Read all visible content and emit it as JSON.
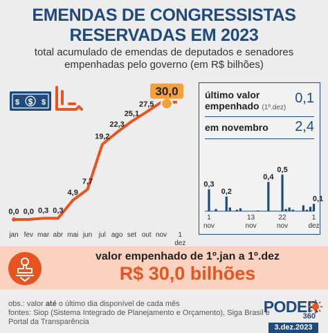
{
  "header": {
    "title_line1": "EMENDAS DE CONGRESSISTAS",
    "title_line2": "RESERVADAS EM 2023",
    "subtitle_line1": "total acumulado de emendas de deputados e senadores",
    "subtitle_line2": "empenhadas pelo governo (em R$ bilhões)"
  },
  "chart_data": [
    {
      "type": "line",
      "x": [
        "jan",
        "fev",
        "mar",
        "abr",
        "mai",
        "jun",
        "jul",
        "ago",
        "set",
        "out",
        "nov",
        "1 dez"
      ],
      "values": [
        0.0,
        0.0,
        0.3,
        0.3,
        4.9,
        7.7,
        19.2,
        22.3,
        25.1,
        27.5,
        30.0,
        30.0
      ],
      "value_labels": [
        "0,0",
        "0,0",
        "0,3",
        "0,3",
        "4,9",
        "7,7",
        "19,2",
        "22,3",
        "25,1",
        "27,5",
        "30,0",
        ""
      ],
      "highlight_index": 10,
      "color": "#e8541f",
      "ylim": [
        0,
        31
      ],
      "grid": false,
      "title": "",
      "xlabel": "",
      "ylabel": ""
    },
    {
      "type": "bar",
      "values": [
        0.3,
        0.0,
        0.03,
        0.0,
        0.0,
        0.2,
        0.05,
        0.0,
        0.02,
        0.04,
        0.0,
        0.0,
        0.0,
        0.0,
        0.01,
        0.0,
        0.0,
        0.4,
        0.0,
        0.0,
        0.0,
        0.5,
        0.03,
        0.05,
        0.02,
        0.0,
        0.0,
        0.08,
        0.02,
        0.06,
        0.1
      ],
      "value_labels": [
        {
          "index": 0,
          "text": "0,3"
        },
        {
          "index": 5,
          "text": "0,2"
        },
        {
          "index": 17,
          "text": "0,4"
        },
        {
          "index": 21,
          "text": "0,5"
        },
        {
          "index": 30,
          "text": "0,1"
        }
      ],
      "tick_labels": [
        {
          "index": 0,
          "day": "1",
          "month": "nov"
        },
        {
          "index": 12,
          "day": "13",
          "month": "nov"
        },
        {
          "index": 21,
          "day": "22",
          "month": "nov"
        },
        {
          "index": 30,
          "day": "1",
          "month": "dez"
        }
      ],
      "color": "#1f4a7a",
      "ylim": [
        0,
        0.55
      ],
      "title": "",
      "xlabel": "",
      "ylabel": ""
    }
  ],
  "inset": {
    "last_label_line1": "último valor",
    "last_label_line2": "empenhado",
    "last_date": "(1º.dez)",
    "last_value": "0,1",
    "nov_label": "em novembro",
    "nov_value": "2,4"
  },
  "total": {
    "label": "valor empenhado de 1º.jan a 1º.dez",
    "value": "R$ 30,0 bilhões"
  },
  "footnote": {
    "line1_prefix": "obs.: valor ",
    "line1_bold": "até",
    "line1_suffix": " o último dia disponível de cada mês",
    "line2": "fontes: Siop (Sistema Integrado de Planejamento e Orçamento), Siga Brasil e",
    "line3": "Portal da Transparência"
  },
  "brand": {
    "name": "PODER",
    "sub": "360",
    "date": "3.dez.2023"
  },
  "icons": [
    "money-icon",
    "hand-icon",
    "stamp-icon"
  ],
  "colors": {
    "accent": "#e8541f",
    "primary": "#1f4a7a",
    "band": "#fbd2bf"
  }
}
